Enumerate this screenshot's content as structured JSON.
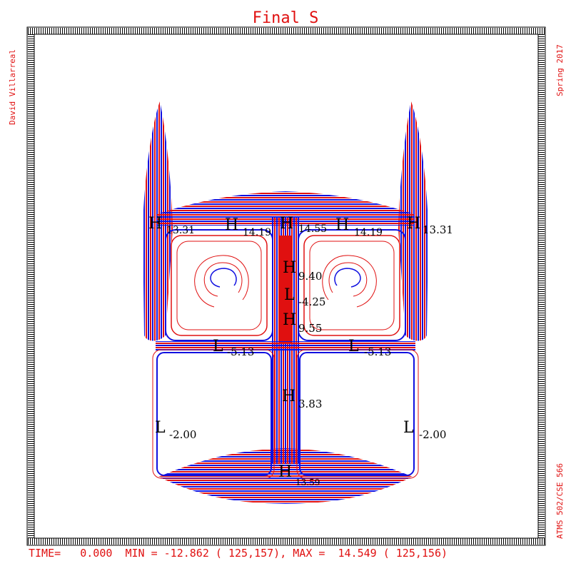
{
  "title": "Final S",
  "left_label": "David Villarreal",
  "right_top_label": "Spring 2017",
  "right_bottom_label": "ATMS 502/CSE 566",
  "footer": "TIME=   0.000  MIN = -12.862 ( 125,157), MAX =  14.549 ( 125,156)",
  "colors": {
    "positive": "#e01010",
    "negative": "#1010e0",
    "frame": "#000000",
    "background": "#ffffff"
  },
  "extrema": [
    {
      "mark": "H",
      "value": "13.31"
    },
    {
      "mark": "H",
      "value": "14.19"
    },
    {
      "mark": "H",
      "value": "14.55"
    },
    {
      "mark": "H",
      "value": "14.19"
    },
    {
      "mark": "H",
      "value": "13.31"
    },
    {
      "mark": "H",
      "value": "9.40"
    },
    {
      "mark": "L",
      "value": "-4.25"
    },
    {
      "mark": "H",
      "value": "9.55"
    },
    {
      "mark": "L",
      "value": "-5.13"
    },
    {
      "mark": "L",
      "value": "-5.13"
    },
    {
      "mark": "H",
      "value": "3.83"
    },
    {
      "mark": "L",
      "value": "-2.00"
    },
    {
      "mark": "L",
      "value": "-2.00"
    },
    {
      "mark": "H",
      "value": "13.59"
    }
  ]
}
